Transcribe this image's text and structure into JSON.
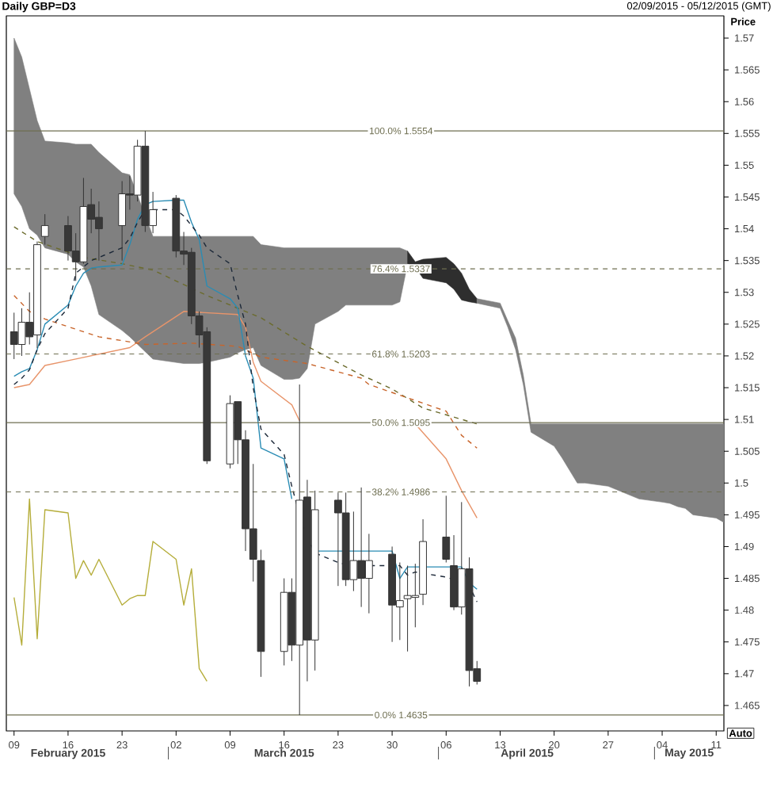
{
  "chart_data": {
    "type": "candlestick",
    "title": "Daily GBP=D3",
    "subtitle": "02/09/2015 - 05/12/2015 (GMT)",
    "ylabel": "Price",
    "annotations": [
      "February 2015",
      "March 2015",
      "April 2015",
      "May 2015",
      "Auto"
    ],
    "x": [
      "2015-02-09",
      "2015-02-10",
      "2015-02-11",
      "2015-02-12",
      "2015-02-13",
      "2015-02-16",
      "2015-02-17",
      "2015-02-18",
      "2015-02-19",
      "2015-02-20",
      "2015-02-23",
      "2015-02-24",
      "2015-02-25",
      "2015-02-26",
      "2015-02-27",
      "2015-03-02",
      "2015-03-03",
      "2015-03-04",
      "2015-03-05",
      "2015-03-06",
      "2015-03-09",
      "2015-03-10",
      "2015-03-11",
      "2015-03-12",
      "2015-03-13",
      "2015-03-16",
      "2015-03-17",
      "2015-03-18",
      "2015-03-19",
      "2015-03-20",
      "2015-03-23",
      "2015-03-24",
      "2015-03-25",
      "2015-03-26",
      "2015-03-27",
      "2015-03-30",
      "2015-03-31",
      "2015-04-01",
      "2015-04-02",
      "2015-04-03",
      "2015-04-06",
      "2015-04-07",
      "2015-04-08",
      "2015-04-09",
      "2015-04-10"
    ],
    "ohlc": [
      [
        1.5238,
        1.5268,
        1.5195,
        1.5218
      ],
      [
        1.5218,
        1.5275,
        1.52,
        1.5253
      ],
      [
        1.5253,
        1.53,
        1.5218,
        1.523
      ],
      [
        1.5233,
        1.538,
        1.5212,
        1.5375
      ],
      [
        1.5388,
        1.5423,
        1.5375,
        1.5405
      ],
      [
        1.5405,
        1.542,
        1.535,
        1.5365
      ],
      [
        1.5365,
        1.5393,
        1.5318,
        1.5348
      ],
      [
        1.5348,
        1.548,
        1.5345,
        1.5435
      ],
      [
        1.5438,
        1.5463,
        1.5393,
        1.5415
      ],
      [
        1.5418,
        1.5443,
        1.535,
        1.54
      ],
      [
        1.5405,
        1.5475,
        1.535,
        1.5455
      ],
      [
        1.5455,
        1.5483,
        1.543,
        1.5453
      ],
      [
        1.5453,
        1.554,
        1.5443,
        1.553
      ],
      [
        1.553,
        1.5554,
        1.5395,
        1.5405
      ],
      [
        1.5405,
        1.5458,
        1.5393,
        1.543
      ],
      [
        1.5448,
        1.5453,
        1.5355,
        1.5365
      ],
      [
        1.5365,
        1.5395,
        1.5343,
        1.536
      ],
      [
        1.5363,
        1.537,
        1.525,
        1.5263
      ],
      [
        1.5263,
        1.527,
        1.5213,
        1.5233
      ],
      [
        1.5238,
        1.5245,
        1.503,
        1.5035
      ],
      [
        1.503,
        1.5138,
        1.5023,
        1.5125
      ],
      [
        1.5128,
        1.5128,
        1.503,
        1.5068
      ],
      [
        1.5068,
        1.5083,
        1.4893,
        1.4928
      ],
      [
        1.4928,
        1.503,
        1.4845,
        1.488
      ],
      [
        1.4878,
        1.4895,
        1.4695,
        1.4735
      ],
      [
        1.4735,
        1.485,
        1.4713,
        1.4828
      ],
      [
        1.4828,
        1.485,
        1.472,
        1.4745
      ],
      [
        1.4745,
        1.5155,
        1.4635,
        1.4973
      ],
      [
        1.4978,
        1.5005,
        1.4688,
        1.4753
      ],
      [
        1.4753,
        1.4988,
        1.4705,
        1.4958
      ],
      [
        1.4973,
        1.4985,
        1.4838,
        1.4953
      ],
      [
        1.4953,
        1.4985,
        1.4838,
        1.4848
      ],
      [
        1.4848,
        1.4955,
        1.483,
        1.4878
      ],
      [
        1.4878,
        1.4993,
        1.4805,
        1.485
      ],
      [
        1.485,
        1.492,
        1.4795,
        1.4878
      ],
      [
        1.4888,
        1.49,
        1.475,
        1.4808
      ],
      [
        1.4805,
        1.4875,
        1.4753,
        1.4815
      ],
      [
        1.4818,
        1.487,
        1.4735,
        1.4823
      ],
      [
        1.482,
        1.4873,
        1.4773,
        1.4823
      ],
      [
        1.4825,
        1.4943,
        1.4808,
        1.4908
      ],
      [
        1.4915,
        1.498,
        1.4875,
        1.488
      ],
      [
        1.487,
        1.4918,
        1.48,
        1.4805
      ],
      [
        1.4805,
        1.497,
        1.4793,
        1.4865
      ],
      [
        1.4865,
        1.4883,
        1.468,
        1.4705
      ],
      [
        1.4708,
        1.472,
        1.4683,
        1.4688
      ]
    ],
    "series": [
      {
        "type": "line",
        "color": "#808080",
        "values": [
          null,
          null,
          null,
          null,
          null,
          null,
          null,
          null,
          null,
          null,
          null,
          null,
          null,
          null,
          null,
          null,
          null,
          null,
          null,
          null,
          null,
          null,
          null,
          null,
          null,
          null,
          null,
          null,
          null,
          null,
          null,
          null,
          null,
          null,
          null
        ],
        "x": [
          "2015-02-09",
          "2015-02-10",
          "2015-02-11",
          "2015-02-12",
          "2015-02-13",
          "2015-02-16",
          "2015-02-17",
          "2015-02-18",
          "2015-02-19",
          "2015-02-20",
          "2015-02-23",
          "2015-02-24",
          "2015-02-27",
          "2015-03-03",
          "2015-03-04",
          "2015-03-05",
          "2015-03-06",
          "2015-03-09",
          "2015-03-10",
          "2015-03-11",
          "2015-03-12",
          "2015-03-13",
          "2015-03-16",
          "2015-03-17",
          "2015-03-18",
          "2015-03-19",
          "2015-03-20",
          "2015-03-23",
          "2015-03-24",
          "2015-03-25",
          "2015-03-26",
          "2015-03-27",
          "2015-03-30",
          "2015-03-31",
          "2015-04-01"
        ],
        "upper": [
          1.57,
          1.567,
          1.562,
          1.557,
          1.5538,
          1.5535,
          1.5533,
          1.5533,
          1.5533,
          1.552,
          1.5488,
          1.5485,
          1.5388,
          1.5388,
          1.5388,
          1.5388,
          1.5388,
          1.5388,
          1.5388,
          1.5388,
          1.5388,
          1.5375,
          1.537,
          1.537,
          1.537,
          1.537,
          1.537,
          1.537,
          1.537,
          1.537,
          1.537,
          1.537,
          1.537,
          1.537,
          1.5365
        ],
        "lower": [
          1.5455,
          1.5435,
          1.54,
          1.539,
          1.537,
          1.536,
          1.5348,
          1.534,
          1.531,
          1.5265,
          1.524,
          1.523,
          1.5195,
          1.5188,
          1.5188,
          1.5188,
          1.519,
          1.5198,
          1.5205,
          1.521,
          1.5213,
          1.5185,
          1.5163,
          1.5163,
          1.5165,
          1.518,
          1.525,
          1.527,
          1.528,
          1.528,
          1.528,
          1.528,
          1.528,
          1.5285,
          1.5345
        ]
      },
      {
        "type": "line",
        "color": "#2e2e2e",
        "values": [
          null,
          null,
          null,
          null,
          null,
          null,
          null,
          null
        ],
        "x": [
          "2015-04-01",
          "2015-04-02",
          "2015-04-03",
          "2015-04-06",
          "2015-04-07",
          "2015-04-08",
          "2015-04-09",
          "2015-04-10"
        ],
        "upper": [
          1.5365,
          1.5348,
          1.5352,
          1.5355,
          1.5345,
          1.533,
          1.5305,
          1.529
        ],
        "lower": [
          1.5345,
          1.534,
          1.5322,
          1.5315,
          1.5305,
          1.5288,
          1.5285,
          1.5283
        ]
      },
      {
        "type": "line",
        "color": "#808080",
        "values": [
          null,
          null,
          null,
          null,
          null,
          null,
          null,
          null,
          null,
          null,
          null,
          null,
          null,
          null,
          null,
          null,
          null,
          null,
          null,
          null,
          null,
          null,
          null
        ],
        "x": [
          "2015-04-10",
          "2015-04-13",
          "2015-04-14",
          "2015-04-15",
          "2015-04-16",
          "2015-04-17",
          "2015-04-20",
          "2015-04-21",
          "2015-04-22",
          "2015-04-23",
          "2015-04-24",
          "2015-04-27",
          "2015-04-28",
          "2015-04-29",
          "2015-04-30",
          "2015-05-01",
          "2015-05-04",
          "2015-05-05",
          "2015-05-06",
          "2015-05-07",
          "2015-05-08",
          "2015-05-11",
          "2015-05-12"
        ],
        "upper": [
          1.529,
          1.5283,
          1.5255,
          1.5228,
          1.517,
          1.5093,
          1.5093,
          1.5093,
          1.5093,
          1.5093,
          1.5093,
          1.5093,
          1.5093,
          1.5093,
          1.5093,
          1.5093,
          1.5093,
          1.5093,
          1.5093,
          1.5093,
          1.5093,
          1.5093,
          1.5093
        ],
        "lower": [
          1.5283,
          1.5275,
          1.5245,
          1.521,
          1.5155,
          1.508,
          1.5058,
          1.504,
          1.502,
          1.5,
          1.5,
          1.4995,
          1.499,
          1.4985,
          1.498,
          1.4975,
          1.497,
          1.4968,
          1.4963,
          1.496,
          1.495,
          1.4945,
          1.4938
        ]
      },
      {
        "type": "line",
        "color": "#b5ad3a",
        "line_style": "solid",
        "x": [
          "2015-02-09",
          "2015-02-10",
          "2015-02-11",
          "2015-02-12",
          "2015-02-13",
          "2015-02-16",
          "2015-02-17",
          "2015-02-18",
          "2015-02-19",
          "2015-02-20",
          "2015-02-23",
          "2015-02-24",
          "2015-02-25",
          "2015-02-26",
          "2015-02-27",
          "2015-03-02",
          "2015-03-03",
          "2015-03-04",
          "2015-03-05",
          "2015-03-06"
        ],
        "values": [
          1.482,
          1.4745,
          1.4975,
          1.4755,
          1.4958,
          1.4953,
          1.485,
          1.4878,
          1.4855,
          1.488,
          1.4808,
          1.4818,
          1.4823,
          1.4823,
          1.4908,
          1.488,
          1.4808,
          1.4865,
          1.4708,
          1.4688
        ]
      },
      {
        "type": "line",
        "color": "#e8946a",
        "line_style": "solid",
        "x": [
          "2015-02-09",
          "2015-02-11",
          "2015-02-13",
          "2015-02-17",
          "2015-02-24",
          "2015-02-26",
          "2015-03-03",
          "2015-03-10",
          "2015-03-11",
          "2015-03-12",
          "2015-03-13",
          "2015-03-17",
          "2015-03-18",
          "2015-03-19",
          "2015-04-02",
          "2015-04-06",
          "2015-04-08",
          "2015-04-10"
        ],
        "values": [
          1.515,
          1.5155,
          1.5185,
          1.5195,
          1.5213,
          1.523,
          1.527,
          1.5265,
          1.5245,
          1.519,
          1.516,
          1.5123,
          1.5098,
          null,
          1.5093,
          1.5038,
          1.4988,
          1.4945
        ]
      },
      {
        "type": "line",
        "color": "#6b6b2c",
        "line_style": "dashed",
        "x": [
          "2015-02-09",
          "2015-02-12",
          "2015-02-18",
          "2015-02-23",
          "2015-02-27",
          "2015-03-06",
          "2015-03-13",
          "2015-03-19",
          "2015-03-26",
          "2015-03-30",
          "2015-04-03",
          "2015-04-10"
        ],
        "values": [
          1.5403,
          1.538,
          1.5355,
          1.5345,
          1.5335,
          1.5295,
          1.526,
          1.5215,
          1.517,
          1.5148,
          1.5118,
          1.5093
        ]
      },
      {
        "type": "line",
        "color": "#c8642a",
        "line_style": "dashed",
        "x": [
          "2015-02-09",
          "2015-02-11",
          "2015-02-13",
          "2015-02-20",
          "2015-02-26",
          "2015-03-04",
          "2015-03-10",
          "2015-03-13",
          "2015-03-19",
          "2015-03-26",
          "2015-03-27",
          "2015-04-06",
          "2015-04-08",
          "2015-04-10"
        ],
        "values": [
          1.5295,
          1.527,
          1.5258,
          1.523,
          1.5218,
          1.522,
          1.5215,
          1.5198,
          1.5188,
          1.5165,
          1.5155,
          1.5113,
          1.5075,
          1.5055
        ]
      },
      {
        "type": "line",
        "color": "#2a8cb4",
        "line_style": "solid",
        "values": [
          1.5168,
          1.5175,
          1.518,
          1.521,
          1.525,
          1.528,
          1.531,
          1.533,
          1.5338,
          1.534,
          1.5343,
          1.5375,
          1.5415,
          1.5438,
          1.5443,
          1.5445,
          1.5445,
          1.541,
          1.5383,
          1.531,
          1.529,
          1.5275,
          1.52,
          1.5165,
          1.5055,
          1.5038,
          1.4975,
          null,
          null,
          1.4893,
          1.4893,
          1.4893,
          1.4893,
          1.4893,
          1.4893,
          1.4893,
          1.485,
          1.4868,
          1.4868,
          1.4868,
          1.4868,
          1.4868,
          1.4868,
          1.4843,
          1.4833
        ]
      },
      {
        "type": "line",
        "color": "#1c2838",
        "line_style": "dashed",
        "values": [
          1.5155,
          1.5165,
          1.5178,
          1.521,
          1.5235,
          1.5275,
          1.533,
          1.534,
          1.535,
          1.5355,
          1.537,
          1.5385,
          1.541,
          1.543,
          1.543,
          1.543,
          1.542,
          1.5405,
          1.539,
          1.537,
          1.5345,
          1.5295,
          1.525,
          1.515,
          1.5085,
          1.5045,
          1.4995,
          1.495,
          1.4915,
          1.489,
          1.4875,
          1.4872,
          1.487,
          1.487,
          1.487,
          1.487,
          1.487,
          1.4855,
          1.486,
          1.4858,
          1.4852,
          1.4848,
          1.4843,
          1.4838,
          1.4813
        ]
      }
    ],
    "ref_lines": [
      {
        "axis": "y",
        "value": 1.5554,
        "label": "100.0% 1.5554",
        "color": "#6e6e50",
        "line_style": "solid"
      },
      {
        "axis": "y",
        "value": 1.5337,
        "label": "76.4% 1.5337",
        "color": "#6e6e50",
        "line_style": "dashed"
      },
      {
        "axis": "y",
        "value": 1.5203,
        "label": "61.8% 1.5203",
        "color": "#6e6e50",
        "line_style": "dashed"
      },
      {
        "axis": "y",
        "value": 1.5095,
        "label": "50.0% 1.5095",
        "color": "#6e6e50",
        "line_style": "solid"
      },
      {
        "axis": "y",
        "value": 1.4986,
        "label": "38.2% 1.4986",
        "color": "#6e6e50",
        "line_style": "dashed"
      },
      {
        "axis": "y",
        "value": 1.4635,
        "label": "0.0% 1.4635",
        "color": "#6e6e50",
        "line_style": "solid"
      }
    ],
    "xlim": [
      "2015-02-08",
      "2015-05-12"
    ],
    "xticks": [
      {
        "value": "2015-02-09",
        "label": "09"
      },
      {
        "value": "2015-02-16",
        "label": "16"
      },
      {
        "value": "2015-02-23",
        "label": "23"
      },
      {
        "value": "2015-03-02",
        "label": "02"
      },
      {
        "value": "2015-03-09",
        "label": "09"
      },
      {
        "value": "2015-03-16",
        "label": "16"
      },
      {
        "value": "2015-03-23",
        "label": "23"
      },
      {
        "value": "2015-03-30",
        "label": "30"
      },
      {
        "value": "2015-04-06",
        "label": "06"
      },
      {
        "value": "2015-04-13",
        "label": "13"
      },
      {
        "value": "2015-04-20",
        "label": "20"
      },
      {
        "value": "2015-04-27",
        "label": "27"
      },
      {
        "value": "2015-05-04",
        "label": "04"
      },
      {
        "value": "2015-05-11",
        "label": "11"
      }
    ],
    "ylim": [
      1.461,
      1.5735
    ],
    "yticks": [
      1.465,
      1.47,
      1.475,
      1.48,
      1.485,
      1.49,
      1.495,
      1.5,
      1.505,
      1.51,
      1.515,
      1.52,
      1.525,
      1.53,
      1.535,
      1.54,
      1.545,
      1.55,
      1.555,
      1.56,
      1.565,
      1.57
    ]
  }
}
